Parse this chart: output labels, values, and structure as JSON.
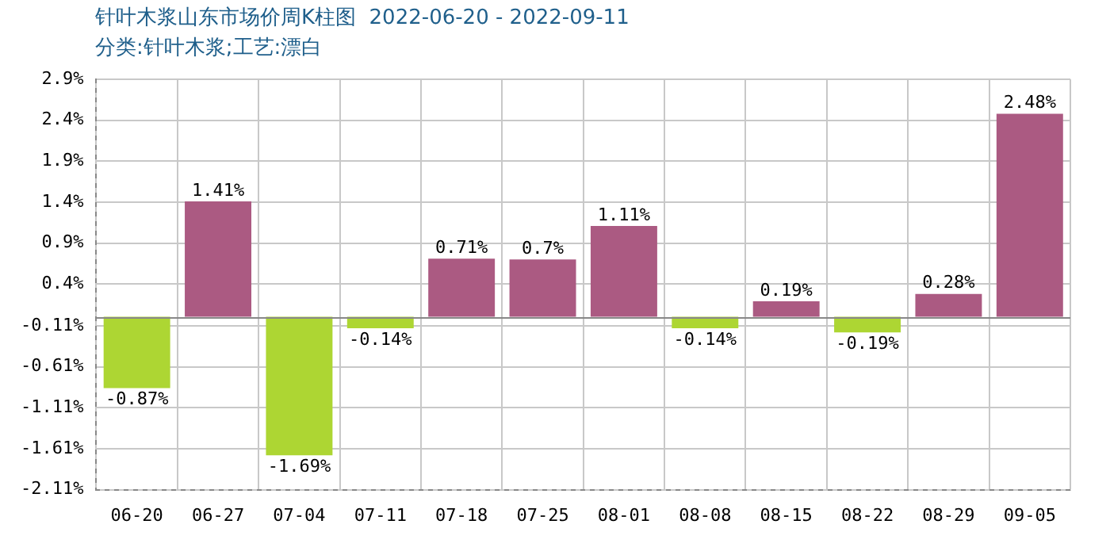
{
  "chart_data": {
    "type": "bar",
    "title": "针叶木浆山东市场价周K柱图  2022-06-20 - 2022-09-11",
    "subtitle": "分类:针叶木浆;工艺:漂白",
    "categories": [
      "06-20",
      "06-27",
      "07-04",
      "07-11",
      "07-18",
      "07-25",
      "08-01",
      "08-08",
      "08-15",
      "08-22",
      "08-29",
      "09-05"
    ],
    "values": [
      -0.87,
      1.41,
      -1.69,
      -0.14,
      0.71,
      0.7,
      1.11,
      -0.14,
      0.19,
      -0.19,
      0.28,
      2.48
    ],
    "value_labels": [
      "-0.87%",
      "1.41%",
      "-1.69%",
      "-0.14%",
      "0.71%",
      "0.7%",
      "1.11%",
      "-0.14%",
      "0.19%",
      "-0.19%",
      "0.28%",
      "2.48%"
    ],
    "colors": [
      "#add633",
      "#ab5a82",
      "#add633",
      "#add633",
      "#ab5a82",
      "#ab5a82",
      "#ab5a82",
      "#add633",
      "#ab5a82",
      "#add633",
      "#ab5a82",
      "#ab5a82"
    ],
    "ylim": [
      -2.11,
      2.9
    ],
    "yticks": [
      {
        "value": 2.9,
        "label": "2.9%"
      },
      {
        "value": 2.4,
        "label": "2.4%"
      },
      {
        "value": 1.9,
        "label": "1.9%"
      },
      {
        "value": 1.4,
        "label": "1.4%"
      },
      {
        "value": 0.9,
        "label": "0.9%"
      },
      {
        "value": 0.4,
        "label": "0.4%"
      },
      {
        "value": -0.11,
        "label": "-0.11%"
      },
      {
        "value": -0.61,
        "label": "-0.61%"
      },
      {
        "value": -1.11,
        "label": "-1.11%"
      },
      {
        "value": -1.61,
        "label": "-1.61%"
      },
      {
        "value": -2.11,
        "label": "-2.11%"
      }
    ],
    "grid": true,
    "legend": false
  }
}
